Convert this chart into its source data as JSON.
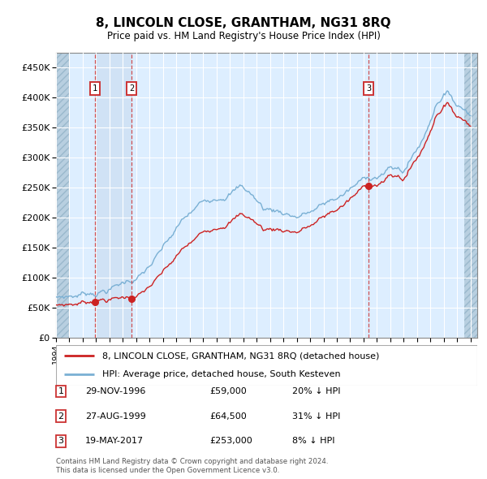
{
  "title": "8, LINCOLN CLOSE, GRANTHAM, NG31 8RQ",
  "subtitle": "Price paid vs. HM Land Registry's House Price Index (HPI)",
  "legend_entry1": "8, LINCOLN CLOSE, GRANTHAM, NG31 8RQ (detached house)",
  "legend_entry2": "HPI: Average price, detached house, South Kesteven",
  "transactions": [
    {
      "label": "1",
      "date_year": 1996,
      "date_month": 11,
      "date_day": 29,
      "price": 59000,
      "hpi_pct": "20% ↓ HPI",
      "display": "29-NOV-1996",
      "amount": "£59,000"
    },
    {
      "label": "2",
      "date_year": 1999,
      "date_month": 8,
      "date_day": 27,
      "price": 64500,
      "hpi_pct": "31% ↓ HPI",
      "display": "27-AUG-1999",
      "amount": "£64,500"
    },
    {
      "label": "3",
      "date_year": 2017,
      "date_month": 5,
      "date_day": 19,
      "price": 253000,
      "hpi_pct": "8% ↓ HPI",
      "display": "19-MAY-2017",
      "amount": "£253,000"
    }
  ],
  "footnote1": "Contains HM Land Registry data © Crown copyright and database right 2024.",
  "footnote2": "This data is licensed under the Open Government Licence v3.0.",
  "hpi_color": "#7ab0d4",
  "price_color": "#cc2222",
  "vline_color": "#cc3333",
  "bg_color": "#ddeeff",
  "hatch_color": "#b8cfe0",
  "grid_color": "white",
  "ylim_min": 0,
  "ylim_max": 475000,
  "yticks": [
    0,
    50000,
    100000,
    150000,
    200000,
    250000,
    300000,
    350000,
    400000,
    450000
  ],
  "xlim_min": 1994.0,
  "xlim_max": 2025.5,
  "hatch_left_end": 1995.0,
  "hatch_right_start": 2024.5
}
